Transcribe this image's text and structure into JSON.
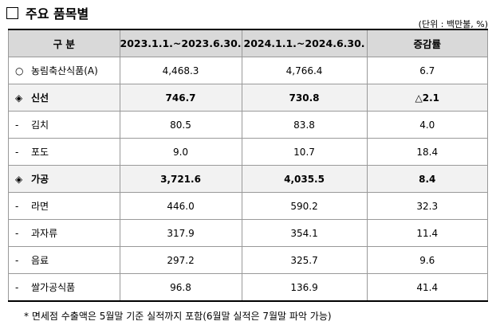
{
  "header": {
    "title": "주요 품목별",
    "unit": "(단위 : 백만불, %)"
  },
  "table": {
    "columns": [
      "구 분",
      "2023.1.1.~2023.6.30.",
      "2024.1.1.~2024.6.30.",
      "증감률"
    ],
    "rows": [
      {
        "marker": "○",
        "label": "농림축산식품(A)",
        "group": false,
        "cells": [
          "4,468.3",
          "4,766.4",
          "6.7"
        ]
      },
      {
        "marker": "◈",
        "label": "신선",
        "group": true,
        "cells": [
          "746.7",
          "730.8",
          "△2.1"
        ]
      },
      {
        "marker": "-",
        "label": "김치",
        "group": false,
        "cells": [
          "80.5",
          "83.8",
          "4.0"
        ]
      },
      {
        "marker": "-",
        "label": "포도",
        "group": false,
        "cells": [
          "9.0",
          "10.7",
          "18.4"
        ]
      },
      {
        "marker": "◈",
        "label": "가공",
        "group": true,
        "cells": [
          "3,721.6",
          "4,035.5",
          "8.4"
        ]
      },
      {
        "marker": "-",
        "label": "라면",
        "group": false,
        "cells": [
          "446.0",
          "590.2",
          "32.3"
        ]
      },
      {
        "marker": "-",
        "label": "과자류",
        "group": false,
        "cells": [
          "317.9",
          "354.1",
          "11.4"
        ]
      },
      {
        "marker": "-",
        "label": "음료",
        "group": false,
        "cells": [
          "297.2",
          "325.7",
          "9.6"
        ]
      },
      {
        "marker": "-",
        "label": "쌀가공식품",
        "group": false,
        "cells": [
          "96.8",
          "136.9",
          "41.4"
        ]
      }
    ]
  },
  "footnote": "* 면세점 수출액은 5월말 기준 실적까지 포함(6월말 실적은 7월말 파악 가능)"
}
